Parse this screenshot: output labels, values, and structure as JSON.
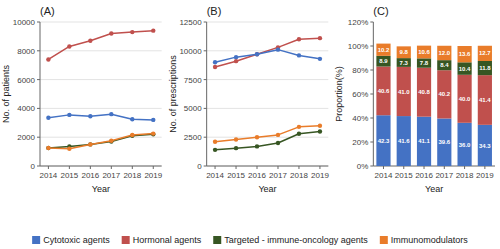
{
  "chart_data": [
    {
      "type": "line",
      "title": "(A)",
      "xlabel": "Year",
      "ylabel": "No. of patients",
      "x": [
        2014,
        2015,
        2016,
        2017,
        2018,
        2019
      ],
      "xlim": [
        2013.6,
        2019.4
      ],
      "xticks": [
        2014,
        2015,
        2016,
        2017,
        2018,
        2019
      ],
      "ylim": [
        0,
        10000
      ],
      "yticks": [
        0,
        2000,
        4000,
        6000,
        8000,
        10000
      ],
      "grid": true,
      "series": [
        {
          "name": "Hormonal agents",
          "color": "#C0504D",
          "marker": "circle",
          "values": [
            7400,
            8300,
            8700,
            9200,
            9300,
            9400
          ]
        },
        {
          "name": "Cytotoxic agents",
          "color": "#4472C4",
          "marker": "circle",
          "values": [
            3350,
            3550,
            3450,
            3600,
            3250,
            3200
          ]
        },
        {
          "name": "Targeted - immune-oncology agents",
          "color": "#375623",
          "marker": "circle",
          "values": [
            1250,
            1350,
            1500,
            1700,
            2100,
            2200
          ]
        },
        {
          "name": "Immunomodulators",
          "color": "#E97C2A",
          "marker": "circle",
          "values": [
            1250,
            1200,
            1500,
            1750,
            2150,
            2250
          ]
        }
      ]
    },
    {
      "type": "line",
      "title": "(B)",
      "xlabel": "Year",
      "ylabel": "No. of prescriptions",
      "x": [
        2014,
        2015,
        2016,
        2017,
        2018,
        2019
      ],
      "xlim": [
        2013.6,
        2019.4
      ],
      "xticks": [
        2014,
        2015,
        2016,
        2017,
        2018,
        2019
      ],
      "ylim": [
        0,
        12500
      ],
      "yticks": [
        0,
        2500,
        5000,
        7500,
        10000,
        12500
      ],
      "grid": true,
      "series": [
        {
          "name": "Hormonal agents",
          "color": "#C0504D",
          "marker": "circle",
          "values": [
            8600,
            9100,
            9700,
            10300,
            11000,
            11100
          ]
        },
        {
          "name": "Cytotoxic agents",
          "color": "#4472C4",
          "marker": "circle",
          "values": [
            9000,
            9450,
            9700,
            10100,
            9600,
            9300
          ]
        },
        {
          "name": "Targeted - immune-oncology agents",
          "color": "#375623",
          "marker": "circle",
          "values": [
            1400,
            1550,
            1700,
            2000,
            2800,
            3000
          ]
        },
        {
          "name": "Immunomodulators",
          "color": "#E97C2A",
          "marker": "circle",
          "values": [
            2100,
            2300,
            2500,
            2700,
            3400,
            3500
          ]
        }
      ]
    },
    {
      "type": "bar",
      "stacked": true,
      "data_labels": true,
      "title": "(C)",
      "xlabel": "Year",
      "ylabel": "Proportion(%)",
      "categories": [
        "2014",
        "2015",
        "2016",
        "2017",
        "2018",
        "2019"
      ],
      "ylim": [
        0,
        120
      ],
      "yticks": [
        {
          "value": 0,
          "label": "0%"
        },
        {
          "value": 20,
          "label": "20%"
        },
        {
          "value": 40,
          "label": "40%"
        },
        {
          "value": 60,
          "label": "60%"
        },
        {
          "value": 80,
          "label": "80%"
        },
        {
          "value": 100,
          "label": "100%"
        },
        {
          "value": 120,
          "label": "120%"
        }
      ],
      "grid": false,
      "legend": "bottom",
      "series": [
        {
          "name": "Cytotoxic agents",
          "color": "#4472C4",
          "values": [
            42.3,
            41.6,
            41.1,
            39.6,
            36.0,
            34.3
          ],
          "value_labels": [
            "42.3",
            "41.6",
            "41.1",
            "39.6",
            "36.0",
            "34.3"
          ]
        },
        {
          "name": "Hormonal agents",
          "color": "#C0504D",
          "values": [
            40.6,
            41.0,
            40.8,
            40.2,
            40.0,
            41.4
          ],
          "value_labels": [
            "40.6",
            "41.0",
            "40.8",
            "40.2",
            "40.0",
            "41.4"
          ]
        },
        {
          "name": "Targeted - immune-oncology agents",
          "color": "#375623",
          "values": [
            8.9,
            7.3,
            7.8,
            8.4,
            10.4,
            11.8
          ],
          "value_labels": [
            "8.9",
            "7.3",
            "7.8",
            "8.4",
            "10.4",
            "11.8"
          ]
        },
        {
          "name": "Immunomodulators",
          "color": "#E97C2A",
          "values": [
            10.2,
            9.8,
            10.6,
            12.0,
            13.6,
            12.7
          ],
          "value_labels": [
            "10.2",
            "9.8",
            "10.6",
            "12.0",
            "13.6",
            "12.7"
          ]
        }
      ]
    }
  ]
}
